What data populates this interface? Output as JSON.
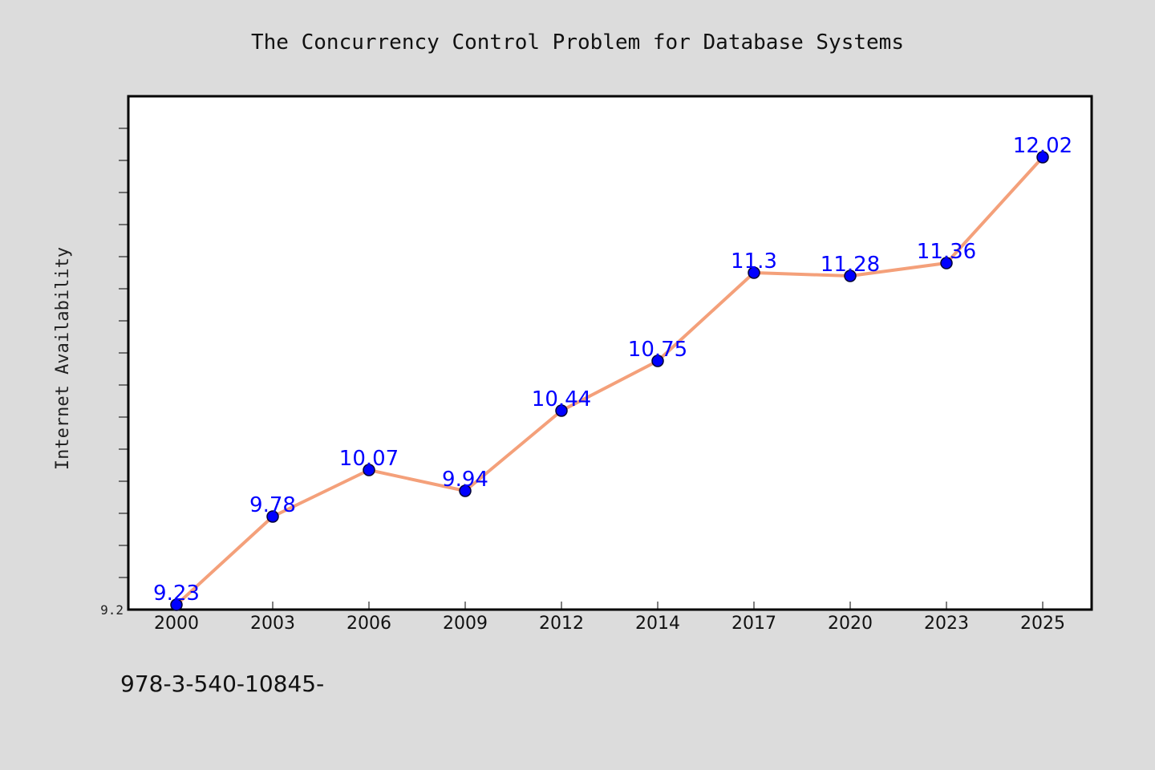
{
  "chart_data": {
    "type": "line",
    "title": "The Concurrency Control Problem for Database Systems",
    "xlabel": "",
    "ylabel": "Internet Availability",
    "categories": [
      "2000",
      "2003",
      "2006",
      "2009",
      "2012",
      "2014",
      "2017",
      "2020",
      "2023",
      "2025"
    ],
    "series": [
      {
        "values": [
          9.23,
          9.78,
          10.07,
          9.94,
          10.44,
          10.75,
          11.3,
          11.28,
          11.36,
          12.02
        ]
      }
    ],
    "data_labels": [
      "9.23",
      "9.78",
      "10.07",
      "9.94",
      "10.44",
      "10.75",
      "11.3",
      "11.28",
      "11.36",
      "12.02"
    ],
    "ylim": [
      9.2,
      12.4
    ],
    "yticks_labeled": [
      "9.2"
    ],
    "grid": false,
    "line_color": "#f4a07a",
    "marker_color": "#0000ff",
    "label_color": "#0000ff"
  },
  "footer": {
    "text": "978-3-540-10845-"
  }
}
